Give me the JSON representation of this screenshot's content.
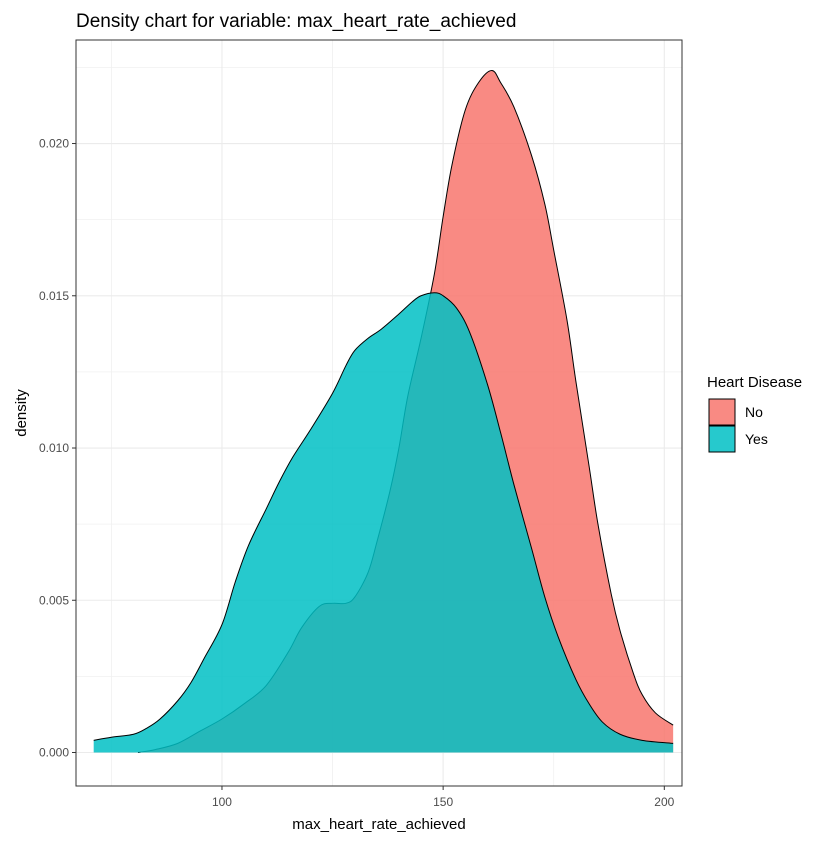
{
  "chart_data": {
    "type": "area",
    "title": "Density chart for variable: max_heart_rate_achieved",
    "xlabel": "max_heart_rate_achieved",
    "ylabel": "density",
    "xlim": [
      67,
      204
    ],
    "ylim": [
      -0.0011,
      0.0234
    ],
    "x_ticks": [
      100,
      150,
      200
    ],
    "x_tick_labels": [
      "100",
      "150",
      "200"
    ],
    "y_ticks": [
      0.0,
      0.005,
      0.01,
      0.015,
      0.02
    ],
    "y_tick_labels": [
      "0.000",
      "0.005",
      "0.010",
      "0.015",
      "0.020"
    ],
    "grid": true,
    "legend": {
      "title": "Heart Disease",
      "placement": "right"
    },
    "series": [
      {
        "name": "No",
        "color": "#F8766D",
        "opacity": 0.85,
        "x": [
          81,
          85,
          90,
          95,
          100,
          105,
          110,
          115,
          118,
          122,
          125,
          128,
          130,
          133,
          135,
          138,
          140,
          142,
          145,
          148,
          150,
          152,
          155,
          158,
          161,
          163,
          166,
          170,
          173,
          175,
          178,
          180,
          183,
          185,
          188,
          190,
          193,
          195,
          198,
          202
        ],
        "y": [
          0.0,
          0.0001,
          0.0003,
          0.0007,
          0.0011,
          0.0016,
          0.0022,
          0.0033,
          0.0041,
          0.0048,
          0.0049,
          0.0049,
          0.0051,
          0.0059,
          0.0069,
          0.0086,
          0.01,
          0.0117,
          0.0136,
          0.0157,
          0.0176,
          0.0193,
          0.0211,
          0.022,
          0.0224,
          0.022,
          0.0212,
          0.0196,
          0.018,
          0.0165,
          0.0142,
          0.0122,
          0.0094,
          0.0075,
          0.0052,
          0.004,
          0.0026,
          0.0019,
          0.0013,
          0.0009
        ]
      },
      {
        "name": "Yes",
        "color": "#00BFC4",
        "opacity": 0.85,
        "x": [
          71,
          75,
          80,
          83,
          86,
          90,
          93,
          96,
          100,
          103,
          106,
          110,
          113,
          116,
          120,
          125,
          128,
          130,
          133,
          136,
          140,
          143,
          145,
          148,
          150,
          153,
          156,
          160,
          163,
          166,
          170,
          173,
          176,
          180,
          183,
          186,
          190,
          195,
          202
        ],
        "y": [
          0.0004,
          0.0005,
          0.0006,
          0.0008,
          0.0011,
          0.0017,
          0.0023,
          0.0031,
          0.0042,
          0.0056,
          0.0068,
          0.008,
          0.0089,
          0.0097,
          0.0106,
          0.0118,
          0.0127,
          0.0132,
          0.0136,
          0.0139,
          0.0144,
          0.0148,
          0.015,
          0.0151,
          0.015,
          0.0146,
          0.0138,
          0.0121,
          0.0105,
          0.0088,
          0.0067,
          0.0051,
          0.0038,
          0.0024,
          0.0016,
          0.001,
          0.0006,
          0.0004,
          0.0003
        ]
      }
    ]
  }
}
